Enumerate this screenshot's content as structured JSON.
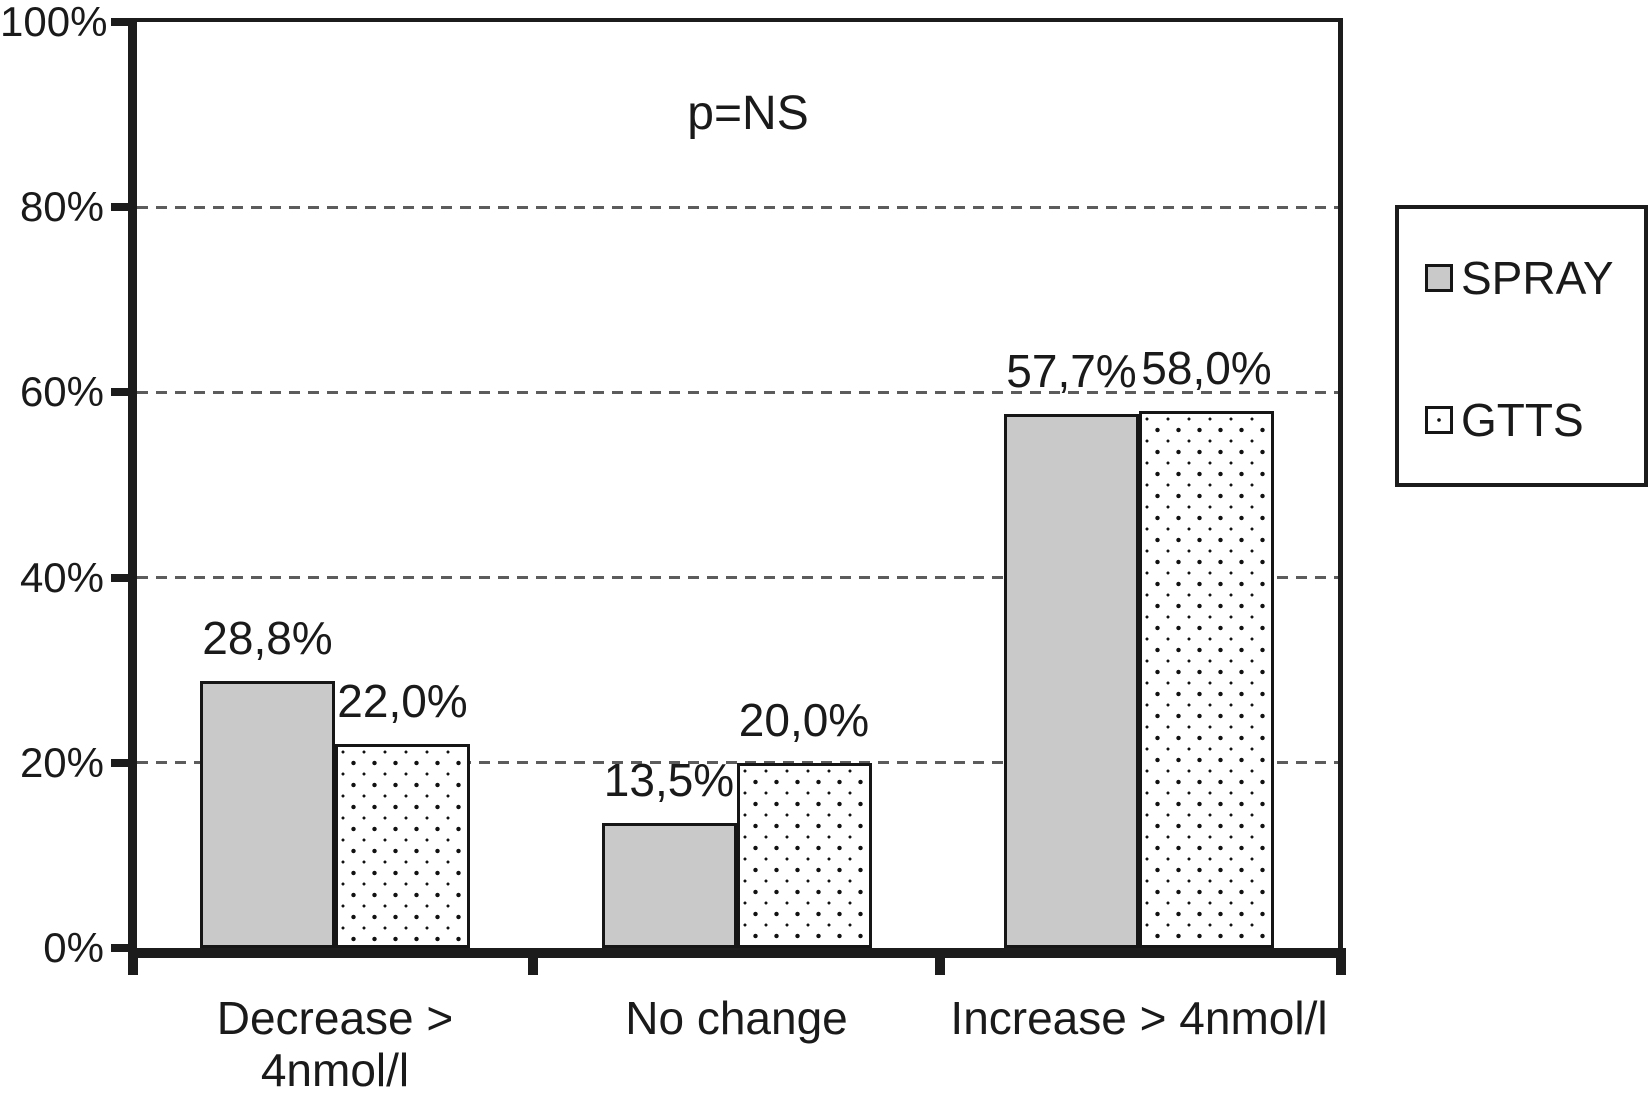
{
  "chart_data": {
    "type": "bar",
    "annotation": "p=NS",
    "categories": [
      "Decrease > 4nmol/l",
      "No change",
      "Increase > 4nmol/l"
    ],
    "categories_lines": [
      [
        "Decrease >",
        "4nmol/l"
      ],
      [
        "No change"
      ],
      [
        "Increase > 4nmol/l"
      ]
    ],
    "series": [
      {
        "name": "SPRAY",
        "style": "solid",
        "values": [
          28.8,
          13.5,
          57.7
        ],
        "value_labels": [
          "28,8%",
          "13,5%",
          "57,7%"
        ]
      },
      {
        "name": "GTTS",
        "style": "dots",
        "values": [
          22.0,
          20.0,
          58.0
        ],
        "value_labels": [
          "22,0%",
          "20,0%",
          "58,0%"
        ]
      }
    ],
    "xlabel": "",
    "ylabel": "",
    "ylim": [
      0,
      100
    ],
    "yticks": [
      {
        "value": 0,
        "label": "0%"
      },
      {
        "value": 20,
        "label": "20%"
      },
      {
        "value": 40,
        "label": "40%"
      },
      {
        "value": 60,
        "label": "60%"
      },
      {
        "value": 80,
        "label": "80%"
      },
      {
        "value": 100,
        "label": "100%"
      }
    ],
    "gridline_values": [
      20,
      40,
      60,
      80
    ],
    "grid_style": "dashed-horizontal",
    "legend_position": "right",
    "colors": {
      "spray_fill": "#c9c9c9",
      "gtts_fill": "#ffffff",
      "dot_color": "#111111",
      "axis": "#1c1c1c",
      "gridline": "#5c5c5c",
      "text": "#1a1a1a",
      "background": "#ffffff"
    }
  }
}
